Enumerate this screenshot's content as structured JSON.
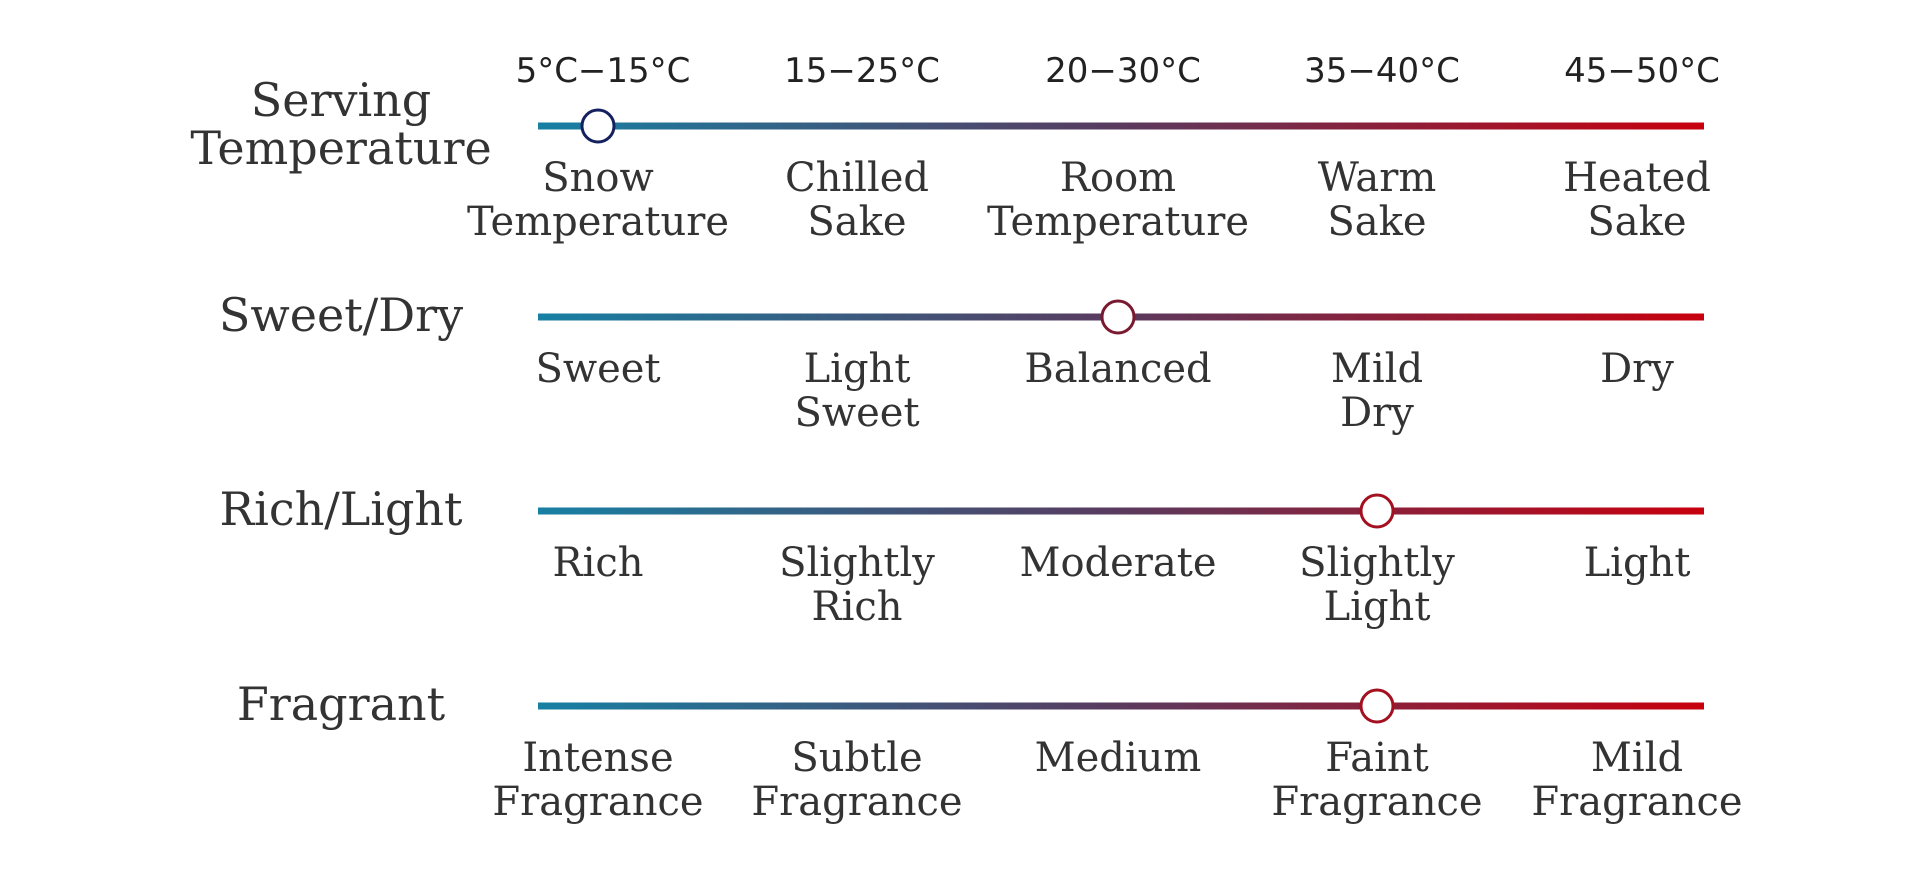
{
  "rows": [
    {
      "label": [
        "Serving",
        "Temperature"
      ],
      "selected": 0,
      "marker_color": "#15205e",
      "options": [
        {
          "temp": "5°C−15°C",
          "lines": [
            "Snow",
            "Temperature"
          ]
        },
        {
          "temp": "15−25°C",
          "lines": [
            "Chilled",
            "Sake"
          ]
        },
        {
          "temp": "20−30°C",
          "lines": [
            "Room",
            "Temperature"
          ]
        },
        {
          "temp": "35−40°C",
          "lines": [
            "Warm",
            "Sake"
          ]
        },
        {
          "temp": "45−50°C",
          "lines": [
            "Heated",
            "Sake"
          ]
        }
      ]
    },
    {
      "label": [
        "Sweet/Dry"
      ],
      "selected": 2,
      "marker_color": "#7a1a30",
      "options": [
        {
          "lines": [
            "Sweet"
          ]
        },
        {
          "lines": [
            "Light",
            "Sweet"
          ]
        },
        {
          "lines": [
            "Balanced"
          ]
        },
        {
          "lines": [
            "Mild",
            "Dry"
          ]
        },
        {
          "lines": [
            "Dry"
          ]
        }
      ]
    },
    {
      "label": [
        "Rich/Light"
      ],
      "selected": 3,
      "marker_color": "#a3101f",
      "options": [
        {
          "lines": [
            "Rich"
          ]
        },
        {
          "lines": [
            "Slightly",
            "Rich"
          ]
        },
        {
          "lines": [
            "Moderate"
          ]
        },
        {
          "lines": [
            "Slightly",
            "Light"
          ]
        },
        {
          "lines": [
            "Light"
          ]
        }
      ]
    },
    {
      "label": [
        "Fragrant"
      ],
      "selected": 3,
      "marker_color": "#a3101f",
      "options": [
        {
          "lines": [
            "Intense",
            "Fragrance"
          ]
        },
        {
          "lines": [
            "Subtle",
            "Fragrance"
          ]
        },
        {
          "lines": [
            "Medium"
          ]
        },
        {
          "lines": [
            "Faint",
            "Fragrance"
          ]
        },
        {
          "lines": [
            "Mild",
            "Fragrance"
          ]
        }
      ]
    }
  ]
}
